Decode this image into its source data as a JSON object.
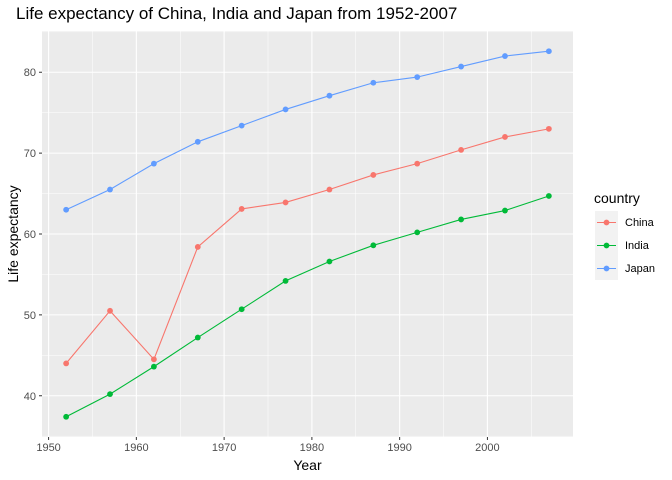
{
  "chart_data": {
    "type": "line",
    "title": "Life expectancy of China, India and Japan from 1952-2007",
    "xlabel": "Year",
    "ylabel": "Life expectancy",
    "x": [
      1952,
      1957,
      1962,
      1967,
      1972,
      1977,
      1982,
      1987,
      1992,
      1997,
      2002,
      2007
    ],
    "xlim": [
      1949.25,
      2009.75
    ],
    "ylim": [
      34.9,
      85.1
    ],
    "xticks": [
      1950,
      1960,
      1970,
      1980,
      1990,
      2000
    ],
    "yticks": [
      40,
      50,
      60,
      70,
      80
    ],
    "grid": true,
    "legend": {
      "title": "country",
      "position": "right"
    },
    "series": [
      {
        "name": "China",
        "color": "#F8766D",
        "values": [
          44.0,
          50.5,
          44.5,
          58.4,
          63.1,
          63.9,
          65.5,
          67.3,
          68.7,
          70.4,
          72.0,
          73.0
        ]
      },
      {
        "name": "India",
        "color": "#00BA38",
        "values": [
          37.4,
          40.2,
          43.6,
          47.2,
          50.7,
          54.2,
          56.6,
          58.6,
          60.2,
          61.8,
          62.9,
          64.7
        ]
      },
      {
        "name": "Japan",
        "color": "#619CFF",
        "values": [
          63.0,
          65.5,
          68.7,
          71.4,
          73.4,
          75.4,
          77.1,
          78.7,
          79.4,
          80.7,
          82.0,
          82.6
        ]
      }
    ]
  }
}
